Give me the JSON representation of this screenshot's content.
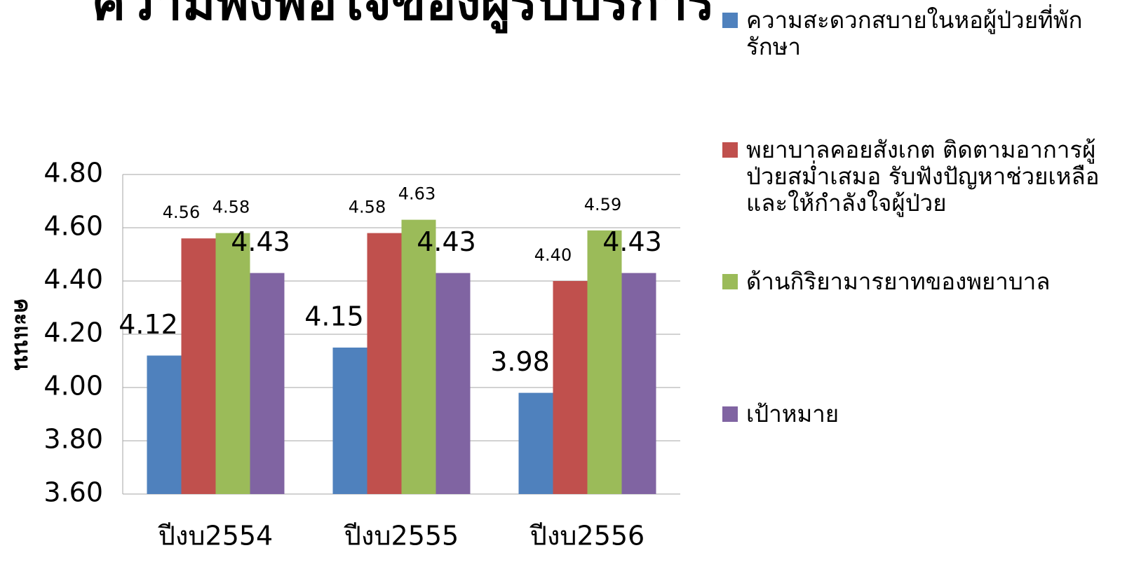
{
  "chart_data": {
    "type": "bar",
    "title": "ความพึงพอใจของผู้รับบริการ",
    "ylabel": "คะแนน",
    "categories": [
      "ปีงบ2554",
      "ปีงบ2555",
      "ปีงบ2556"
    ],
    "series": [
      {
        "name": "ความสะดวกสบายในหอผู้ป่วยที่พักรักษา",
        "color": "#4f81bd",
        "values": [
          4.12,
          4.15,
          3.98
        ],
        "value_labels": [
          "4.12",
          "4.15",
          "3.98"
        ]
      },
      {
        "name": "พยาบาลคอยสังเกต ติดตามอาการผู้ป่วยสม่ำเสมอ รับฟังปัญหาช่วยเหลือและให้กำลังใจผู้ป่วย",
        "color": "#c0504d",
        "values": [
          4.56,
          4.58,
          4.4
        ],
        "value_labels": [
          "4.56",
          "4.58",
          "4.40"
        ]
      },
      {
        "name": "ด้านกิริยามารยาทของพยาบาล",
        "color": "#9bbb59",
        "values": [
          4.58,
          4.63,
          4.59
        ],
        "value_labels": [
          "4.58",
          "4.63",
          "4.59"
        ]
      },
      {
        "name": "เป้าหมาย",
        "color": "#8064a2",
        "values": [
          4.43,
          4.43,
          4.43
        ],
        "value_labels": [
          "4.43",
          "4.43",
          "4.43"
        ]
      }
    ],
    "ylim": [
      3.6,
      4.8
    ],
    "yticks": [
      {
        "value": 3.6,
        "label": "3.60"
      },
      {
        "value": 3.8,
        "label": "3.80"
      },
      {
        "value": 4.0,
        "label": "4.00"
      },
      {
        "value": 4.2,
        "label": "4.20"
      },
      {
        "value": 4.4,
        "label": "4.40"
      },
      {
        "value": 4.6,
        "label": "4.60"
      },
      {
        "value": 4.8,
        "label": "4.80"
      }
    ],
    "grid": true,
    "legend": "right"
  }
}
